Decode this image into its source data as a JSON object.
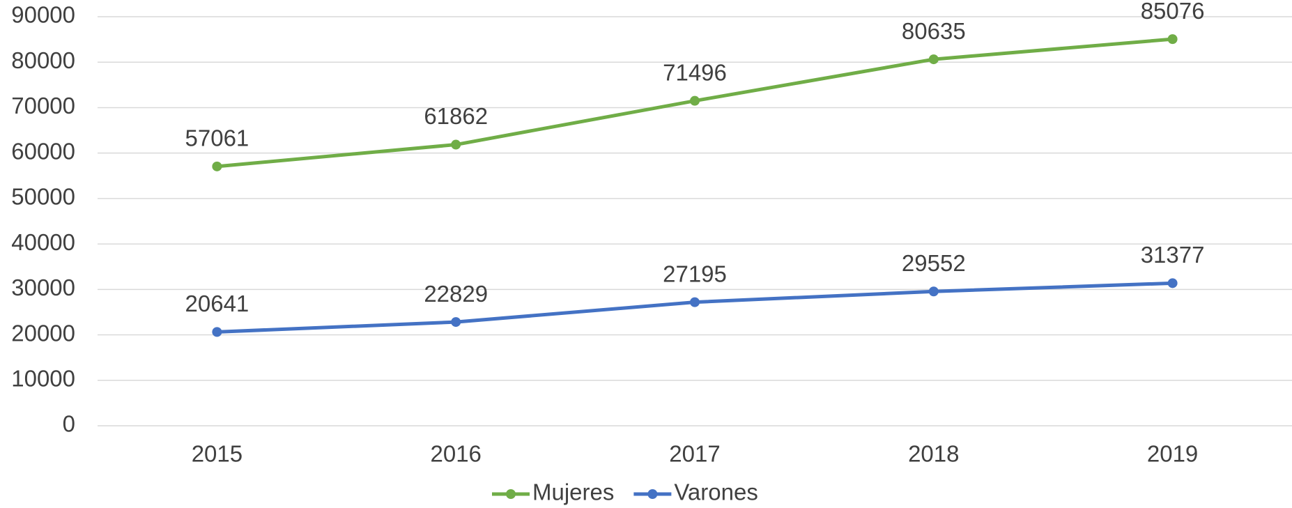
{
  "chart_data": {
    "type": "line",
    "categories": [
      "2015",
      "2016",
      "2017",
      "2018",
      "2019"
    ],
    "series": [
      {
        "name": "Mujeres",
        "color": "#70ad47",
        "values": [
          57061,
          61862,
          71496,
          80635,
          85076
        ]
      },
      {
        "name": "Varones",
        "color": "#4472c4",
        "values": [
          20641,
          22829,
          27195,
          29552,
          31377
        ]
      }
    ],
    "ylim": [
      0,
      90000
    ],
    "yticks": [
      0,
      10000,
      20000,
      30000,
      40000,
      50000,
      60000,
      70000,
      80000,
      90000
    ],
    "grid": true,
    "legend": "bottom",
    "data_labels": true
  }
}
